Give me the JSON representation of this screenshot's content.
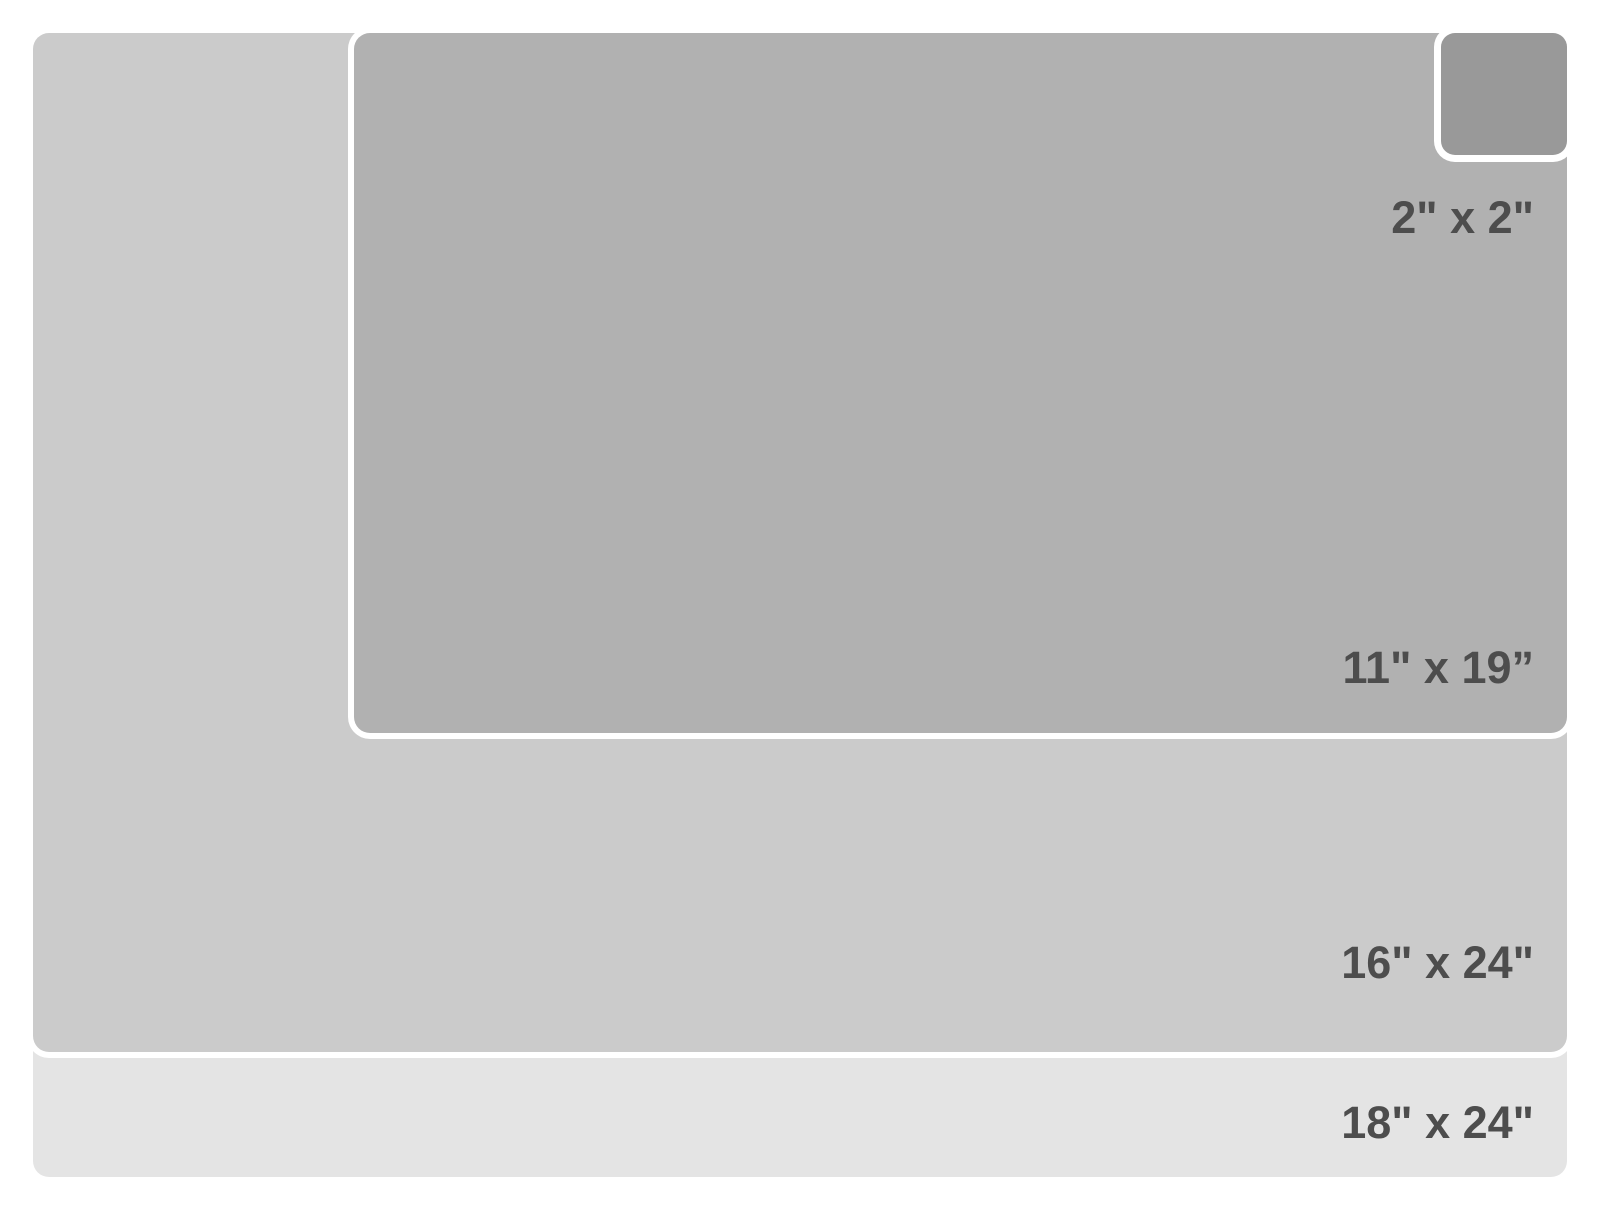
{
  "diagram": {
    "type": "size-comparison",
    "background": "#ffffff",
    "separator_color": "#ffffff",
    "label_color": "#4d4d4d",
    "sizes": [
      {
        "id": "18x24",
        "label": "18\" x 24\"",
        "width_in": 24,
        "height_in": 18,
        "color": "#e4e4e4"
      },
      {
        "id": "16x24",
        "label": "16\" x 24\"",
        "width_in": 24,
        "height_in": 16,
        "color": "#cbcbcb"
      },
      {
        "id": "11x19",
        "label": "11\" x 19”",
        "width_in": 19,
        "height_in": 11,
        "color": "#b1b1b1"
      },
      {
        "id": "2x2",
        "label": "2\" x 2\"",
        "width_in": 2,
        "height_in": 2,
        "color": "#999999"
      }
    ]
  }
}
